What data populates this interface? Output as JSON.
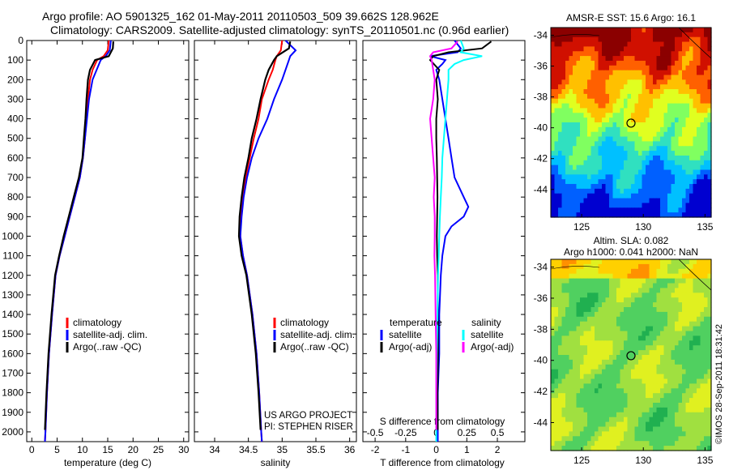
{
  "header": {
    "line1": "Argo profile: AO 5901325_162 01-May-2011 20110503_509 39.662S 128.962E",
    "line2": "Climatology: CARS2009. Satellite-adjusted climatology: synTS_20110501.nc (0.96d earlier)"
  },
  "credit": "US ARGO PROJECT\nPI: STEPHEN RISER",
  "stamp": "©IMOS 28-Sep-2011 18:31:42",
  "colors": {
    "climatology": "#ff0000",
    "satellite": "#0000ff",
    "argo": "#000000",
    "sat_salinity": "#00ffff",
    "argo_salinity": "#ff00ff"
  },
  "chart_data": [
    {
      "type": "line",
      "xlabel": "temperature (deg C)",
      "ylabel": "",
      "xlim": [
        -1,
        31
      ],
      "ylim": [
        2050,
        0
      ],
      "xticks": [
        0,
        5,
        10,
        15,
        20,
        25,
        30
      ],
      "yticks": [
        0,
        100,
        200,
        300,
        400,
        500,
        600,
        700,
        800,
        900,
        1000,
        1100,
        1200,
        1300,
        1400,
        1500,
        1600,
        1700,
        1800,
        1900,
        2000
      ],
      "legend": "lower-center",
      "series": [
        {
          "name": "climatology",
          "color": "#ff0000",
          "y": [
            0,
            50,
            80,
            100,
            150,
            200,
            300,
            400,
            500,
            600,
            700,
            800,
            900,
            1000,
            1100,
            1200,
            1400,
            1600,
            1800,
            2000,
            2050
          ],
          "x": [
            15.2,
            15.0,
            14.2,
            12.9,
            12.0,
            11.5,
            11.1,
            10.8,
            10.5,
            10.1,
            9.5,
            8.5,
            7.5,
            6.5,
            5.5,
            4.7,
            4.0,
            3.4,
            3.0,
            2.7,
            2.6
          ]
        },
        {
          "name": "satellite-adj. clim.",
          "color": "#0000ff",
          "y": [
            0,
            50,
            80,
            100,
            150,
            200,
            300,
            400,
            500,
            600,
            700,
            800,
            900,
            1000,
            1100,
            1200,
            1400,
            1600,
            1800,
            2000,
            2050
          ],
          "x": [
            15.6,
            15.4,
            14.6,
            13.6,
            12.8,
            12.0,
            11.3,
            10.9,
            10.5,
            10.1,
            9.5,
            8.5,
            7.5,
            6.5,
            5.5,
            4.7,
            4.0,
            3.4,
            3.0,
            2.7,
            2.6
          ]
        },
        {
          "name": "Argo(..raw -QC)",
          "color": "#000000",
          "y": [
            5,
            40,
            80,
            100,
            150,
            200,
            300,
            400,
            500,
            600,
            700,
            800,
            900,
            1000,
            1100,
            1200,
            1400,
            1600,
            1800,
            1990
          ],
          "x": [
            16.1,
            16.0,
            15.2,
            12.5,
            11.5,
            11.1,
            10.8,
            10.6,
            10.3,
            10.0,
            9.3,
            8.3,
            7.3,
            6.3,
            5.4,
            4.6,
            3.9,
            3.3,
            2.9,
            2.6
          ]
        }
      ]
    },
    {
      "type": "line",
      "xlabel": "salinity",
      "ylabel": "",
      "xlim": [
        33.7,
        36.1
      ],
      "ylim": [
        2050,
        0
      ],
      "xticks": [
        34,
        34.5,
        35,
        35.5,
        36
      ],
      "legend": "lower-center",
      "series": [
        {
          "name": "climatology",
          "color": "#ff0000",
          "y": [
            0,
            50,
            80,
            100,
            150,
            200,
            300,
            400,
            500,
            600,
            700,
            800,
            900,
            1000,
            1100,
            1200,
            1400,
            1600,
            1800,
            2000,
            2050
          ],
          "x": [
            35.0,
            34.98,
            34.92,
            34.9,
            34.86,
            34.8,
            34.7,
            34.65,
            34.58,
            34.52,
            34.46,
            34.42,
            34.39,
            34.38,
            34.42,
            34.48,
            34.56,
            34.62,
            34.66,
            34.69,
            34.7
          ]
        },
        {
          "name": "satellite-adj. clim.",
          "color": "#0000ff",
          "y": [
            0,
            50,
            80,
            100,
            150,
            200,
            300,
            400,
            500,
            600,
            700,
            800,
            900,
            1000,
            1100,
            1200,
            1400,
            1600,
            1800,
            2000,
            2050
          ],
          "x": [
            35.05,
            35.2,
            35.12,
            35.1,
            35.05,
            35.0,
            34.88,
            34.78,
            34.65,
            34.55,
            34.48,
            34.43,
            34.4,
            34.38,
            34.42,
            34.48,
            34.56,
            34.62,
            34.66,
            34.69,
            34.7
          ]
        },
        {
          "name": "Argo(..raw -QC)",
          "color": "#000000",
          "y": [
            5,
            40,
            80,
            100,
            150,
            200,
            300,
            400,
            500,
            600,
            700,
            800,
            900,
            1000,
            1100,
            1200,
            1400,
            1600,
            1800,
            1990
          ],
          "x": [
            35.12,
            35.1,
            34.92,
            34.88,
            34.8,
            34.75,
            34.68,
            34.62,
            34.55,
            34.5,
            34.44,
            34.4,
            34.37,
            34.36,
            34.4,
            34.47,
            34.55,
            34.61,
            34.65,
            34.68
          ]
        }
      ]
    },
    {
      "type": "line",
      "xlabel": "T difference from climatology",
      "xlabel_top": "S difference from climatology",
      "xlim": [
        -2.4,
        2.9
      ],
      "ylim": [
        2050,
        0
      ],
      "xticks": [
        -2,
        -1,
        0,
        1,
        2
      ],
      "xticks_top": [
        -0.5,
        -0.25,
        0,
        0.25,
        0.5
      ],
      "legend": "lower-center",
      "legend_groups": [
        "temperature",
        "salinity"
      ],
      "series": [
        {
          "name": "satellite",
          "group": "temperature",
          "color": "#0000ff",
          "y": [
            0,
            40,
            60,
            80,
            100,
            120,
            150,
            200,
            300,
            400,
            500,
            600,
            700,
            800,
            850,
            900,
            950,
            1000,
            1100,
            1200,
            1400,
            1600,
            1800,
            2000,
            2050
          ],
          "x": [
            0.6,
            0.8,
            0.7,
            -0.2,
            0.3,
            0.2,
            0.0,
            0.1,
            0.2,
            0.3,
            0.4,
            0.5,
            0.6,
            0.9,
            1.05,
            0.9,
            0.5,
            0.3,
            0.2,
            0.15,
            0.1,
            0.1,
            0.05,
            0.05,
            0.05
          ]
        },
        {
          "name": "Argo(-adj)",
          "group": "temperature",
          "color": "#000000",
          "y": [
            5,
            40,
            60,
            80,
            100,
            150,
            200,
            300,
            400,
            500,
            600,
            700,
            800,
            900,
            1000,
            1100,
            1200,
            1400,
            1600,
            1800,
            1990
          ],
          "x": [
            1.8,
            1.5,
            0.4,
            -0.1,
            -0.2,
            0.1,
            0.0,
            0.05,
            0.0,
            0.0,
            0.02,
            0.03,
            0.04,
            0.03,
            0.02,
            0.03,
            0.05,
            0.05,
            0.06,
            0.04,
            0.05
          ]
        },
        {
          "name": "satellite",
          "group": "salinity",
          "color": "#00ffff",
          "y": [
            0,
            40,
            60,
            80,
            100,
            120,
            150,
            200,
            300,
            400,
            500,
            600,
            700,
            800,
            900,
            1000,
            1100,
            1200,
            1400,
            1600,
            1800,
            2000,
            2050
          ],
          "x": [
            0.8,
            0.9,
            0.8,
            1.5,
            0.9,
            0.6,
            0.4,
            0.4,
            0.35,
            0.3,
            0.25,
            0.2,
            0.18,
            0.15,
            0.12,
            0.1,
            0.08,
            0.06,
            0.04,
            0.02,
            0.0,
            0.0,
            0.0
          ]
        },
        {
          "name": "Argo(-adj)",
          "group": "salinity",
          "color": "#ff00ff",
          "y": [
            5,
            40,
            60,
            80,
            100,
            150,
            200,
            300,
            400,
            500,
            600,
            700,
            800,
            900,
            1000,
            1100,
            1200,
            1400,
            1600,
            1800,
            1990
          ],
          "x": [
            0.7,
            0.5,
            -0.1,
            -0.2,
            -0.15,
            -0.1,
            -0.05,
            -0.1,
            -0.2,
            -0.15,
            -0.1,
            -0.05,
            -0.08,
            -0.05,
            -0.05,
            -0.06,
            -0.04,
            -0.02,
            0.0,
            0.0,
            0.0
          ]
        }
      ]
    },
    {
      "type": "heatmap",
      "title": "AMSR-E SST: 15.6 Argo: 16.1",
      "xlim": [
        122.5,
        135.5
      ],
      "ylim": [
        -45.8,
        -33.5
      ],
      "xticks": [
        125,
        130,
        135
      ],
      "yticks": [
        -34,
        -36,
        -38,
        -40,
        -42,
        -44
      ],
      "marker": [
        129.0,
        -39.7
      ],
      "colors": [
        "#0000d0",
        "#0060ff",
        "#00c0ff",
        "#30e0c0",
        "#80ff60",
        "#e0ff20",
        "#ffc000",
        "#ff6000",
        "#d01000",
        "#8b0000"
      ]
    },
    {
      "type": "heatmap",
      "title": "Altim. SLA: 0.082",
      "subtitle": "Argo h1000: 0.041 h2000: NaN",
      "xlim": [
        122.5,
        135.5
      ],
      "ylim": [
        -45.8,
        -33.5
      ],
      "xticks": [
        125,
        130,
        135
      ],
      "yticks": [
        -34,
        -36,
        -38,
        -40,
        -42,
        -44
      ],
      "marker": [
        129.0,
        -39.7
      ],
      "colors": [
        "#20b050",
        "#50d060",
        "#a0e040",
        "#e0f020",
        "#ffd000",
        "#ff9000"
      ]
    }
  ]
}
